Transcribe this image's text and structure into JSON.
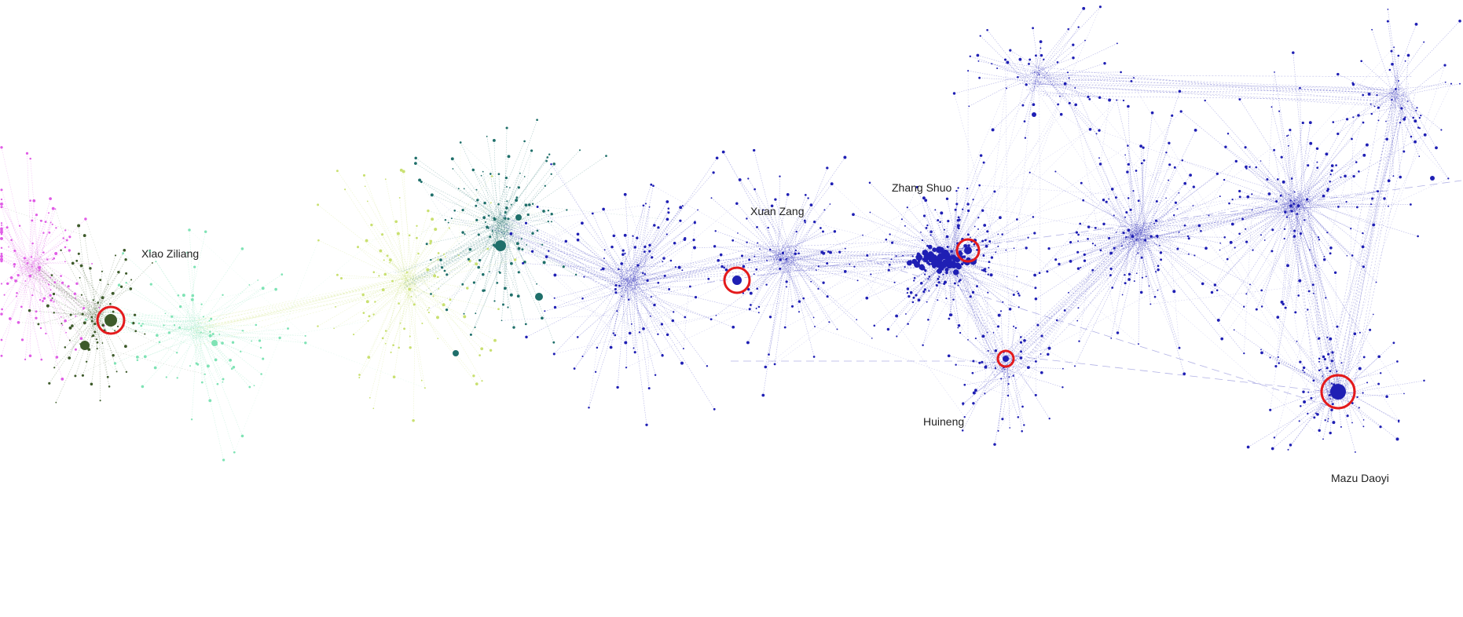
{
  "figure": {
    "labels": [
      {
        "id": "xiao-ziliang",
        "text": "Xiao Ziliang"
      },
      {
        "id": "xuan-zang",
        "text": "Xuan Zang"
      },
      {
        "id": "zhang-shuo",
        "text": "Zhang Shuo"
      },
      {
        "id": "huineng",
        "text": "Huineng"
      },
      {
        "id": "mazu-daoyi",
        "text": "Mazu Daoyi"
      }
    ],
    "highlight_color": "#e41a1c",
    "palette": {
      "magenta": "#e05ce6",
      "dark_green": "#3d5a2a",
      "mint": "#7fe3b5",
      "yellow_green": "#c9e070",
      "teal": "#1f6f6a",
      "blue": "#1f1fb4"
    }
  }
}
